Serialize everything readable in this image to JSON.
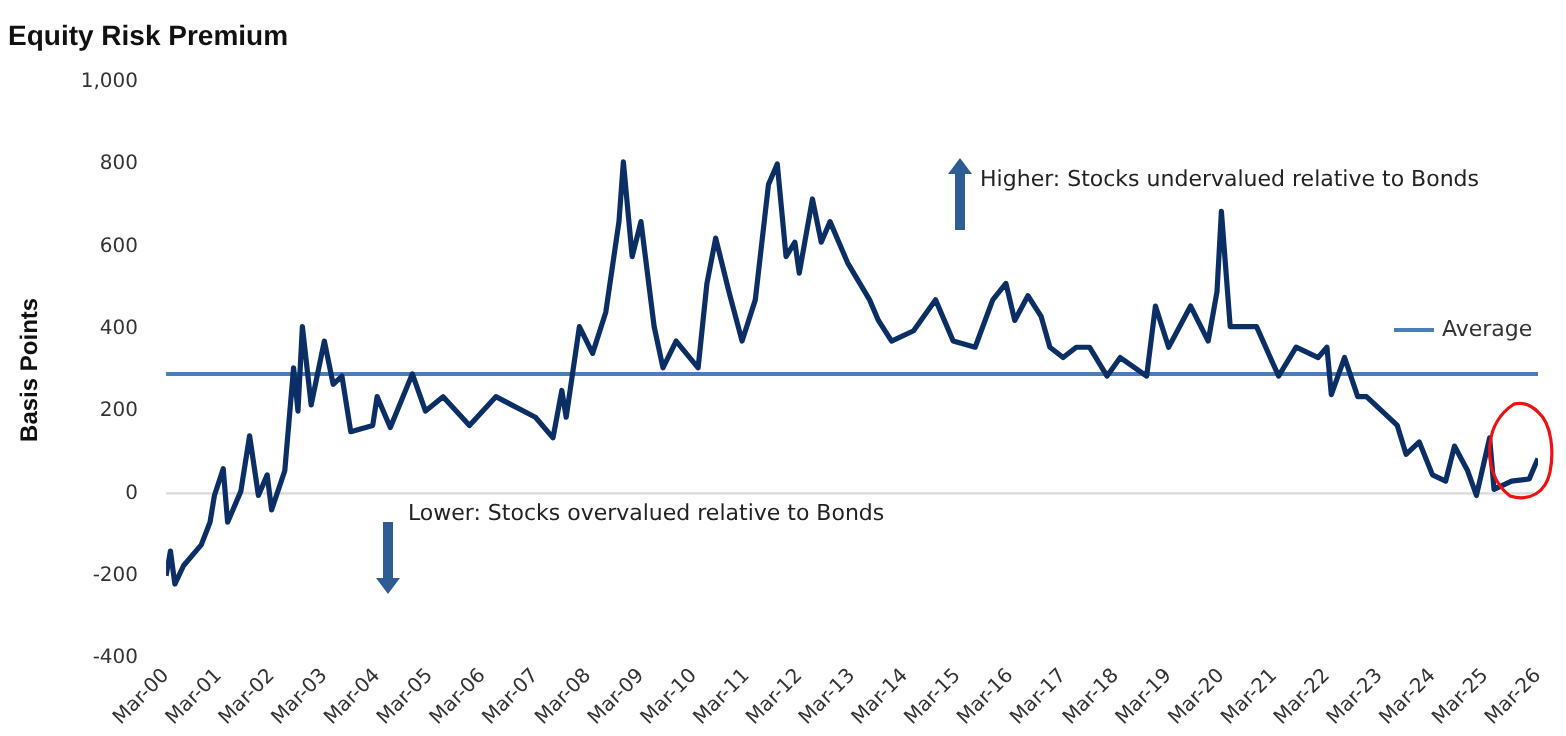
{
  "chart_data": {
    "type": "line",
    "title": "Equity Risk Premium",
    "ylabel": "Basis Points",
    "x": [
      "2000-03",
      "2000-04",
      "2000-05",
      "2000-07",
      "2000-11",
      "2001-01",
      "2001-02",
      "2001-04",
      "2001-05",
      "2001-08",
      "2001-10",
      "2001-12",
      "2002-02",
      "2002-03",
      "2002-06",
      "2002-08",
      "2002-09",
      "2002-10",
      "2002-12",
      "2003-03",
      "2003-05",
      "2003-07",
      "2003-09",
      "2004-02",
      "2004-03",
      "2004-06",
      "2004-11",
      "2005-02",
      "2005-06",
      "2005-12",
      "2006-06",
      "2007-03",
      "2007-07",
      "2007-09",
      "2007-10",
      "2008-01",
      "2008-04",
      "2008-07",
      "2008-10",
      "2008-11",
      "2009-01",
      "2009-03",
      "2009-06",
      "2009-08",
      "2009-11",
      "2010-04",
      "2010-06",
      "2010-08",
      "2010-11",
      "2011-02",
      "2011-05",
      "2011-08",
      "2011-10",
      "2011-12",
      "2012-02",
      "2012-03",
      "2012-06",
      "2012-08",
      "2012-10",
      "2013-02",
      "2013-07",
      "2013-09",
      "2013-12",
      "2014-05",
      "2014-10",
      "2015-02",
      "2015-07",
      "2015-11",
      "2016-02",
      "2016-04",
      "2016-07",
      "2016-10",
      "2016-12",
      "2017-03",
      "2017-06",
      "2017-09",
      "2018-01",
      "2018-04",
      "2018-10",
      "2018-12",
      "2019-03",
      "2019-08",
      "2019-12",
      "2020-02",
      "2020-03",
      "2020-05",
      "2020-11",
      "2021-04",
      "2021-08",
      "2022-01",
      "2022-03",
      "2022-04",
      "2022-07",
      "2022-10",
      "2022-12",
      "2023-07",
      "2023-09",
      "2023-12",
      "2024-03",
      "2024-06",
      "2024-08",
      "2024-11",
      "2025-01",
      "2025-04",
      "2025-05",
      "2025-09",
      "2026-01",
      "2026-03"
    ],
    "series": [
      {
        "color": "#0b2f64",
        "values": [
          -200,
          -140,
          -220,
          -175,
          -125,
          -70,
          -5,
          60,
          -70,
          5,
          140,
          -5,
          45,
          -40,
          55,
          305,
          200,
          405,
          215,
          370,
          265,
          285,
          150,
          165,
          235,
          160,
          290,
          200,
          235,
          165,
          235,
          185,
          135,
          250,
          185,
          405,
          340,
          440,
          660,
          805,
          575,
          660,
          405,
          305,
          370,
          305,
          510,
          620,
          490,
          370,
          470,
          750,
          800,
          575,
          610,
          535,
          715,
          610,
          660,
          560,
          470,
          420,
          370,
          395,
          470,
          370,
          355,
          470,
          510,
          420,
          480,
          430,
          355,
          330,
          355,
          355,
          285,
          330,
          285,
          455,
          355,
          455,
          370,
          490,
          685,
          405,
          405,
          285,
          355,
          330,
          355,
          240,
          330,
          235,
          235,
          165,
          95,
          125,
          45,
          30,
          115,
          55,
          -5,
          135,
          10,
          30,
          35,
          85
        ]
      }
    ],
    "xlim": [
      "2000-03",
      "2026-03"
    ],
    "xticks": [
      {
        "value": "2000-03",
        "label": "Mar-00"
      },
      {
        "value": "2001-03",
        "label": "Mar-01"
      },
      {
        "value": "2002-03",
        "label": "Mar-02"
      },
      {
        "value": "2003-03",
        "label": "Mar-03"
      },
      {
        "value": "2004-03",
        "label": "Mar-04"
      },
      {
        "value": "2005-03",
        "label": "Mar-05"
      },
      {
        "value": "2006-03",
        "label": "Mar-06"
      },
      {
        "value": "2007-03",
        "label": "Mar-07"
      },
      {
        "value": "2008-03",
        "label": "Mar-08"
      },
      {
        "value": "2009-03",
        "label": "Mar-09"
      },
      {
        "value": "2010-03",
        "label": "Mar-10"
      },
      {
        "value": "2011-03",
        "label": "Mar-11"
      },
      {
        "value": "2012-03",
        "label": "Mar-12"
      },
      {
        "value": "2013-03",
        "label": "Mar-13"
      },
      {
        "value": "2014-03",
        "label": "Mar-14"
      },
      {
        "value": "2015-03",
        "label": "Mar-15"
      },
      {
        "value": "2016-03",
        "label": "Mar-16"
      },
      {
        "value": "2017-03",
        "label": "Mar-17"
      },
      {
        "value": "2018-03",
        "label": "Mar-18"
      },
      {
        "value": "2019-03",
        "label": "Mar-19"
      },
      {
        "value": "2020-03",
        "label": "Mar-20"
      },
      {
        "value": "2021-03",
        "label": "Mar-21"
      },
      {
        "value": "2022-03",
        "label": "Mar-22"
      },
      {
        "value": "2023-03",
        "label": "Mar-23"
      },
      {
        "value": "2024-03",
        "label": "Mar-24"
      },
      {
        "value": "2025-03",
        "label": "Mar-25"
      },
      {
        "value": "2026-03",
        "label": "Mar-26"
      }
    ],
    "ylim": [
      -400,
      1000
    ],
    "yticks": [
      -400,
      -200,
      0,
      200,
      400,
      600,
      800,
      {
        "value": 1000,
        "label": "1,000"
      }
    ],
    "ref_lines": [
      {
        "axis": "y",
        "value": 0,
        "color": "#d9d9d9"
      },
      {
        "axis": "y",
        "value": 290,
        "label": "Average",
        "color": "#4a7ebb"
      }
    ],
    "annotations": [
      "Higher: Stocks undervalued relative to Bonds",
      "Lower: Stocks overvalued relative to Bonds"
    ],
    "grid": false,
    "legend": "right",
    "marker": "none",
    "line_style": "solid"
  }
}
